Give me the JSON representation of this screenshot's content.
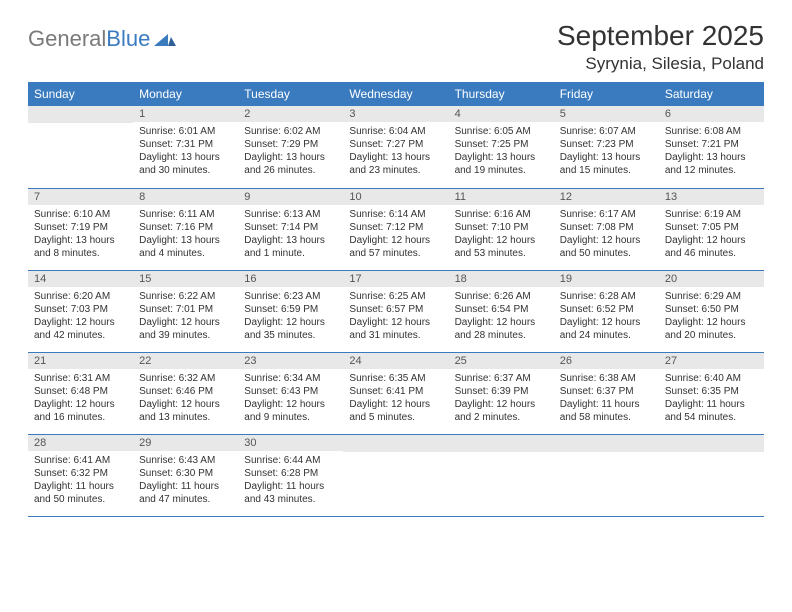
{
  "logo": {
    "text1": "General",
    "text2": "Blue"
  },
  "title": "September 2025",
  "location": "Syrynia, Silesia, Poland",
  "colors": {
    "header_bg": "#3a7bbf",
    "header_text": "#ffffff",
    "daynum_bg": "#e8e8e8",
    "daynum_text": "#555555",
    "body_text": "#333333",
    "rule": "#3a7bbf",
    "logo_gray": "#7a7a7a",
    "logo_blue": "#3a7bbf",
    "page_bg": "#ffffff"
  },
  "typography": {
    "title_fontsize": 28,
    "location_fontsize": 17,
    "dayhead_fontsize": 12,
    "daynum_fontsize": 11,
    "body_fontsize": 10,
    "logo_fontsize": 22
  },
  "day_headers": [
    "Sunday",
    "Monday",
    "Tuesday",
    "Wednesday",
    "Thursday",
    "Friday",
    "Saturday"
  ],
  "weeks": [
    [
      {
        "num": "",
        "sunrise": "",
        "sunset": "",
        "daylight": ""
      },
      {
        "num": "1",
        "sunrise": "Sunrise: 6:01 AM",
        "sunset": "Sunset: 7:31 PM",
        "daylight": "Daylight: 13 hours and 30 minutes."
      },
      {
        "num": "2",
        "sunrise": "Sunrise: 6:02 AM",
        "sunset": "Sunset: 7:29 PM",
        "daylight": "Daylight: 13 hours and 26 minutes."
      },
      {
        "num": "3",
        "sunrise": "Sunrise: 6:04 AM",
        "sunset": "Sunset: 7:27 PM",
        "daylight": "Daylight: 13 hours and 23 minutes."
      },
      {
        "num": "4",
        "sunrise": "Sunrise: 6:05 AM",
        "sunset": "Sunset: 7:25 PM",
        "daylight": "Daylight: 13 hours and 19 minutes."
      },
      {
        "num": "5",
        "sunrise": "Sunrise: 6:07 AM",
        "sunset": "Sunset: 7:23 PM",
        "daylight": "Daylight: 13 hours and 15 minutes."
      },
      {
        "num": "6",
        "sunrise": "Sunrise: 6:08 AM",
        "sunset": "Sunset: 7:21 PM",
        "daylight": "Daylight: 13 hours and 12 minutes."
      }
    ],
    [
      {
        "num": "7",
        "sunrise": "Sunrise: 6:10 AM",
        "sunset": "Sunset: 7:19 PM",
        "daylight": "Daylight: 13 hours and 8 minutes."
      },
      {
        "num": "8",
        "sunrise": "Sunrise: 6:11 AM",
        "sunset": "Sunset: 7:16 PM",
        "daylight": "Daylight: 13 hours and 4 minutes."
      },
      {
        "num": "9",
        "sunrise": "Sunrise: 6:13 AM",
        "sunset": "Sunset: 7:14 PM",
        "daylight": "Daylight: 13 hours and 1 minute."
      },
      {
        "num": "10",
        "sunrise": "Sunrise: 6:14 AM",
        "sunset": "Sunset: 7:12 PM",
        "daylight": "Daylight: 12 hours and 57 minutes."
      },
      {
        "num": "11",
        "sunrise": "Sunrise: 6:16 AM",
        "sunset": "Sunset: 7:10 PM",
        "daylight": "Daylight: 12 hours and 53 minutes."
      },
      {
        "num": "12",
        "sunrise": "Sunrise: 6:17 AM",
        "sunset": "Sunset: 7:08 PM",
        "daylight": "Daylight: 12 hours and 50 minutes."
      },
      {
        "num": "13",
        "sunrise": "Sunrise: 6:19 AM",
        "sunset": "Sunset: 7:05 PM",
        "daylight": "Daylight: 12 hours and 46 minutes."
      }
    ],
    [
      {
        "num": "14",
        "sunrise": "Sunrise: 6:20 AM",
        "sunset": "Sunset: 7:03 PM",
        "daylight": "Daylight: 12 hours and 42 minutes."
      },
      {
        "num": "15",
        "sunrise": "Sunrise: 6:22 AM",
        "sunset": "Sunset: 7:01 PM",
        "daylight": "Daylight: 12 hours and 39 minutes."
      },
      {
        "num": "16",
        "sunrise": "Sunrise: 6:23 AM",
        "sunset": "Sunset: 6:59 PM",
        "daylight": "Daylight: 12 hours and 35 minutes."
      },
      {
        "num": "17",
        "sunrise": "Sunrise: 6:25 AM",
        "sunset": "Sunset: 6:57 PM",
        "daylight": "Daylight: 12 hours and 31 minutes."
      },
      {
        "num": "18",
        "sunrise": "Sunrise: 6:26 AM",
        "sunset": "Sunset: 6:54 PM",
        "daylight": "Daylight: 12 hours and 28 minutes."
      },
      {
        "num": "19",
        "sunrise": "Sunrise: 6:28 AM",
        "sunset": "Sunset: 6:52 PM",
        "daylight": "Daylight: 12 hours and 24 minutes."
      },
      {
        "num": "20",
        "sunrise": "Sunrise: 6:29 AM",
        "sunset": "Sunset: 6:50 PM",
        "daylight": "Daylight: 12 hours and 20 minutes."
      }
    ],
    [
      {
        "num": "21",
        "sunrise": "Sunrise: 6:31 AM",
        "sunset": "Sunset: 6:48 PM",
        "daylight": "Daylight: 12 hours and 16 minutes."
      },
      {
        "num": "22",
        "sunrise": "Sunrise: 6:32 AM",
        "sunset": "Sunset: 6:46 PM",
        "daylight": "Daylight: 12 hours and 13 minutes."
      },
      {
        "num": "23",
        "sunrise": "Sunrise: 6:34 AM",
        "sunset": "Sunset: 6:43 PM",
        "daylight": "Daylight: 12 hours and 9 minutes."
      },
      {
        "num": "24",
        "sunrise": "Sunrise: 6:35 AM",
        "sunset": "Sunset: 6:41 PM",
        "daylight": "Daylight: 12 hours and 5 minutes."
      },
      {
        "num": "25",
        "sunrise": "Sunrise: 6:37 AM",
        "sunset": "Sunset: 6:39 PM",
        "daylight": "Daylight: 12 hours and 2 minutes."
      },
      {
        "num": "26",
        "sunrise": "Sunrise: 6:38 AM",
        "sunset": "Sunset: 6:37 PM",
        "daylight": "Daylight: 11 hours and 58 minutes."
      },
      {
        "num": "27",
        "sunrise": "Sunrise: 6:40 AM",
        "sunset": "Sunset: 6:35 PM",
        "daylight": "Daylight: 11 hours and 54 minutes."
      }
    ],
    [
      {
        "num": "28",
        "sunrise": "Sunrise: 6:41 AM",
        "sunset": "Sunset: 6:32 PM",
        "daylight": "Daylight: 11 hours and 50 minutes."
      },
      {
        "num": "29",
        "sunrise": "Sunrise: 6:43 AM",
        "sunset": "Sunset: 6:30 PM",
        "daylight": "Daylight: 11 hours and 47 minutes."
      },
      {
        "num": "30",
        "sunrise": "Sunrise: 6:44 AM",
        "sunset": "Sunset: 6:28 PM",
        "daylight": "Daylight: 11 hours and 43 minutes."
      },
      {
        "num": "",
        "sunrise": "",
        "sunset": "",
        "daylight": ""
      },
      {
        "num": "",
        "sunrise": "",
        "sunset": "",
        "daylight": ""
      },
      {
        "num": "",
        "sunrise": "",
        "sunset": "",
        "daylight": ""
      },
      {
        "num": "",
        "sunrise": "",
        "sunset": "",
        "daylight": ""
      }
    ]
  ]
}
